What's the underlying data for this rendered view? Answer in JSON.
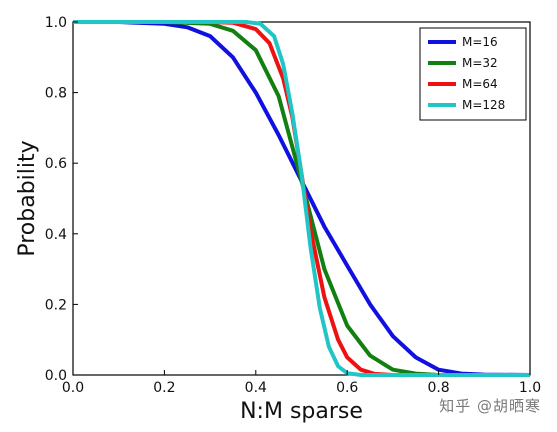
{
  "chart_data": {
    "type": "line",
    "xlabel": "N:M sparse",
    "ylabel": "Probability",
    "xlim": [
      0.0,
      1.0
    ],
    "ylim": [
      0.0,
      1.0
    ],
    "xticks": [
      "0.0",
      "0.2",
      "0.4",
      "0.6",
      "0.8",
      "1.0"
    ],
    "yticks": [
      "0.0",
      "0.2",
      "0.4",
      "0.6",
      "0.8",
      "1.0"
    ],
    "grid": false,
    "legend_position": "top-right",
    "series": [
      {
        "name": "M=16",
        "color": "#1010e0",
        "x": [
          0.0,
          0.1,
          0.2,
          0.25,
          0.3,
          0.35,
          0.4,
          0.45,
          0.5,
          0.55,
          0.6,
          0.65,
          0.7,
          0.75,
          0.8,
          0.85,
          0.9,
          1.0
        ],
        "y": [
          1.0,
          1.0,
          0.995,
          0.985,
          0.96,
          0.9,
          0.8,
          0.68,
          0.55,
          0.42,
          0.31,
          0.2,
          0.11,
          0.05,
          0.015,
          0.004,
          0.001,
          0.0
        ]
      },
      {
        "name": "M=32",
        "color": "#118011",
        "x": [
          0.0,
          0.2,
          0.3,
          0.35,
          0.4,
          0.45,
          0.5,
          0.55,
          0.6,
          0.65,
          0.7,
          0.75,
          0.8,
          1.0
        ],
        "y": [
          1.0,
          1.0,
          0.995,
          0.975,
          0.92,
          0.79,
          0.55,
          0.3,
          0.14,
          0.055,
          0.015,
          0.004,
          0.0,
          0.0
        ]
      },
      {
        "name": "M=64",
        "color": "#ee1111",
        "x": [
          0.0,
          0.3,
          0.35,
          0.4,
          0.43,
          0.46,
          0.48,
          0.5,
          0.52,
          0.55,
          0.58,
          0.6,
          0.63,
          0.66,
          0.7,
          1.0
        ],
        "y": [
          1.0,
          1.0,
          0.998,
          0.98,
          0.94,
          0.84,
          0.73,
          0.57,
          0.41,
          0.22,
          0.1,
          0.05,
          0.015,
          0.003,
          0.0,
          0.0
        ]
      },
      {
        "name": "M=128",
        "color": "#22c5c5",
        "x": [
          0.0,
          0.38,
          0.41,
          0.44,
          0.46,
          0.48,
          0.5,
          0.52,
          0.54,
          0.56,
          0.58,
          0.6,
          0.63,
          1.0
        ],
        "y": [
          1.0,
          1.0,
          0.995,
          0.96,
          0.88,
          0.74,
          0.57,
          0.36,
          0.19,
          0.08,
          0.025,
          0.005,
          0.0,
          0.0
        ]
      }
    ]
  },
  "watermark": "知乎 @胡晒寒"
}
